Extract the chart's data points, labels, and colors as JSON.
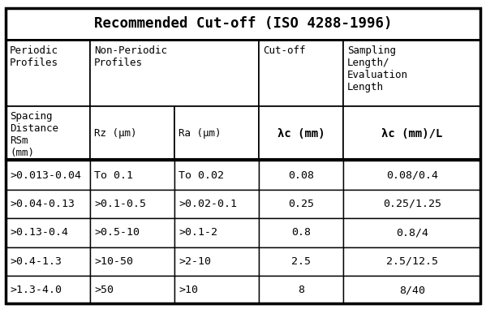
{
  "title": "Recommended Cut-off (ISO 4288-1996)",
  "bg_color": "#ffffff",
  "border_color": "#000000",
  "font_size_title": 12.5,
  "font_size_header": 9.0,
  "font_size_data": 9.5,
  "col_props": [
    0.178,
    0.178,
    0.178,
    0.178,
    0.288
  ],
  "row_props": [
    0.108,
    0.225,
    0.185,
    0.097,
    0.097,
    0.097,
    0.097,
    0.097
  ],
  "rows": [
    [
      ">0.013-0.04",
      "To 0.1",
      "To 0.02",
      "0.08",
      "0.08/0.4"
    ],
    [
      ">0.04-0.13",
      ">0.1-0.5",
      ">0.02-0.1",
      "0.25",
      "0.25/1.25"
    ],
    [
      ">0.13-0.4",
      ">0.5-10",
      ">0.1-2",
      "0.8",
      "0.8/4"
    ],
    [
      ">0.4-1.3",
      ">10-50",
      ">2-10",
      "2.5",
      "2.5/12.5"
    ],
    [
      ">1.3-4.0",
      ">50",
      ">10",
      "8",
      "8/40"
    ]
  ]
}
